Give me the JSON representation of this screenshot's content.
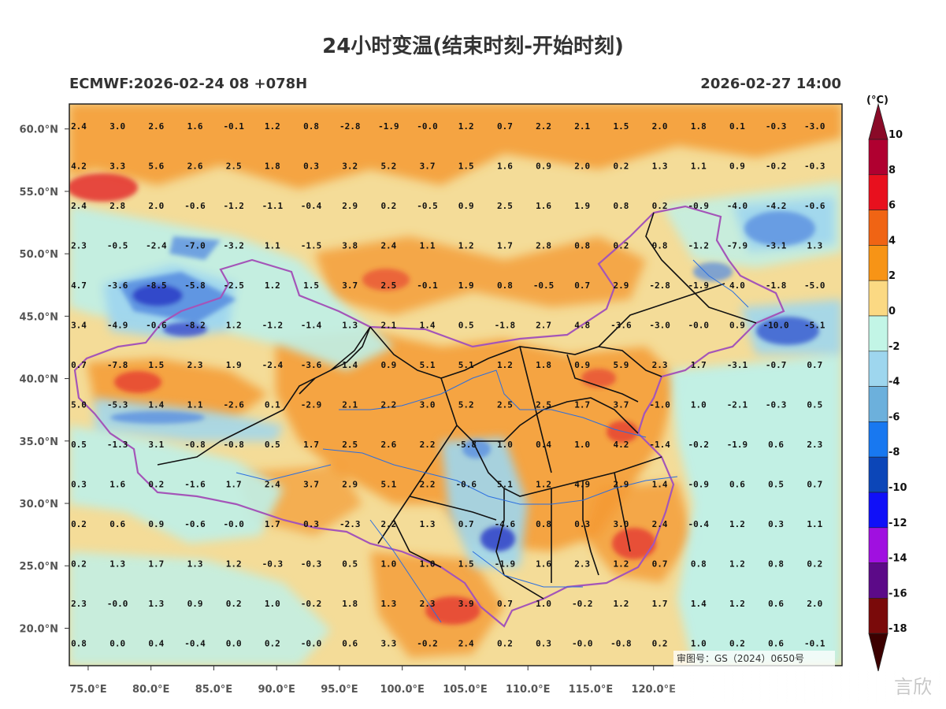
{
  "title": "24小时变温(结束时刻-开始时刻)",
  "model_info": "ECMWF:2026-02-24 08 +078H",
  "valid_time": "2026-02-27 14:00",
  "unit": "(°C)",
  "review_number": "审图号：GS（2024）0650号",
  "corner_mark": "言欣",
  "map": {
    "lon_range": [
      73.5,
      135.0
    ],
    "lat_range": [
      17.0,
      62.0
    ],
    "lat_ticks": [
      "60.0°N",
      "55.0°N",
      "50.0°N",
      "45.0°N",
      "40.0°N",
      "35.0°N",
      "30.0°N",
      "25.0°N",
      "20.0°N"
    ],
    "lat_tick_values": [
      60,
      55,
      50,
      45,
      40,
      35,
      30,
      25,
      20
    ],
    "lon_ticks": [
      "75.0°E",
      "80.0°E",
      "85.0°E",
      "90.0°E",
      "95.0°E",
      "100.0°E",
      "105.0°E",
      "110.0°E",
      "115.0°E",
      "120.0°E"
    ],
    "lon_tick_values": [
      75,
      80,
      85,
      90,
      95,
      100,
      105,
      110,
      115,
      120
    ]
  },
  "station_rows": [
    [
      "2.4",
      "3.0",
      "2.6",
      "1.6",
      "-0.1",
      "1.2",
      "0.8",
      "-2.8",
      "-1.9",
      "-0.0",
      "1.2",
      "0.7",
      "2.2",
      "2.1",
      "1.5",
      "2.0",
      "1.8",
      "0.1",
      "-0.3",
      "-3.0"
    ],
    [
      "4.2",
      "3.3",
      "5.6",
      "2.6",
      "2.5",
      "1.8",
      "0.3",
      "3.2",
      "5.2",
      "3.7",
      "1.5",
      "1.6",
      "0.9",
      "2.0",
      "0.2",
      "1.3",
      "1.1",
      "0.9",
      "-0.2",
      "-0.3"
    ],
    [
      "2.4",
      "2.8",
      "2.0",
      "-0.6",
      "-1.2",
      "-1.1",
      "-0.4",
      "2.9",
      "0.2",
      "-0.5",
      "0.9",
      "2.5",
      "1.6",
      "1.9",
      "0.8",
      "0.2",
      "-0.9",
      "-4.0",
      "-4.2",
      "-0.6"
    ],
    [
      "2.3",
      "-0.5",
      "-2.4",
      "-7.0",
      "-3.2",
      "1.1",
      "-1.5",
      "3.8",
      "2.4",
      "1.1",
      "1.2",
      "1.7",
      "2.8",
      "0.8",
      "0.2",
      "0.8",
      "-1.2",
      "-7.9",
      "-3.1",
      "1.3"
    ],
    [
      "4.7",
      "-3.6",
      "-8.5",
      "-5.8",
      "-2.5",
      "1.2",
      "1.5",
      "3.7",
      "2.5",
      "-0.1",
      "1.9",
      "0.8",
      "-0.5",
      "0.7",
      "2.9",
      "-2.8",
      "-1.9",
      "4.0",
      "-1.8",
      "-5.0"
    ],
    [
      "3.4",
      "-4.9",
      "-0.6",
      "-8.2",
      "1.2",
      "-1.2",
      "-1.4",
      "1.3",
      "2.1",
      "1.4",
      "0.5",
      "-1.8",
      "2.7",
      "4.8",
      "-3.6",
      "-3.0",
      "-0.0",
      "0.9",
      "-10.0",
      "-5.1"
    ],
    [
      "0.7",
      "-7.8",
      "1.5",
      "2.3",
      "1.9",
      "-2.4",
      "-3.6",
      "1.4",
      "0.9",
      "5.1",
      "5.1",
      "1.2",
      "1.8",
      "0.9",
      "5.9",
      "2.3",
      "1.7",
      "-3.1",
      "-0.7",
      "0.7"
    ],
    [
      "5.0",
      "-5.3",
      "1.4",
      "1.1",
      "-2.6",
      "0.1",
      "-2.9",
      "2.1",
      "2.2",
      "3.0",
      "5.2",
      "2.5",
      "2.5",
      "1.7",
      "3.7",
      "-1.0",
      "1.0",
      "-2.1",
      "-0.3",
      "0.5"
    ],
    [
      "0.5",
      "-1.3",
      "3.1",
      "-0.8",
      "-0.8",
      "0.5",
      "1.7",
      "2.5",
      "2.6",
      "2.2",
      "-5.8",
      "1.0",
      "0.4",
      "1.0",
      "4.2",
      "-1.4",
      "-0.2",
      "-1.9",
      "0.6",
      "2.3"
    ],
    [
      "0.3",
      "1.6",
      "0.2",
      "-1.6",
      "1.7",
      "2.4",
      "3.7",
      "2.9",
      "5.1",
      "2.2",
      "-0.6",
      "5.1",
      "1.2",
      "4.9",
      "2.9",
      "1.4",
      "-0.9",
      "0.6",
      "0.5",
      "0.7"
    ],
    [
      "0.2",
      "0.6",
      "0.9",
      "-0.6",
      "-0.0",
      "1.7",
      "0.3",
      "-2.3",
      "2.2",
      "1.3",
      "0.7",
      "-4.6",
      "0.8",
      "0.3",
      "3.0",
      "2.4",
      "-0.4",
      "1.2",
      "0.3",
      "1.1"
    ],
    [
      "0.2",
      "1.3",
      "1.7",
      "1.3",
      "1.2",
      "-0.3",
      "-0.3",
      "0.5",
      "1.0",
      "1.0",
      "1.5",
      "-1.9",
      "1.6",
      "2.3",
      "1.2",
      "0.7",
      "0.8",
      "1.2",
      "0.8",
      "0.2"
    ],
    [
      "2.3",
      "-0.0",
      "1.3",
      "0.9",
      "0.2",
      "1.0",
      "-0.2",
      "1.8",
      "1.3",
      "2.3",
      "3.9",
      "0.7",
      "1.0",
      "-0.2",
      "1.2",
      "1.7",
      "1.4",
      "1.2",
      "0.6",
      "2.0"
    ],
    [
      "0.8",
      "0.0",
      "0.4",
      "-0.4",
      "0.0",
      "0.2",
      "-0.0",
      "0.6",
      "3.3",
      "-0.2",
      "2.4",
      "0.2",
      "0.3",
      "-0.0",
      "-0.8",
      "0.2",
      "1.0",
      "0.2",
      "0.6",
      "-0.1"
    ]
  ],
  "colorbar": {
    "labels": [
      "10",
      "8",
      "6",
      "4",
      "2",
      "0",
      "-2",
      "-4",
      "-6",
      "-8",
      "-10",
      "-12",
      "-14",
      "-16",
      "-18"
    ],
    "levels": [
      10,
      8,
      6,
      4,
      2,
      0,
      -2,
      -4,
      -6,
      -8,
      -10,
      -12,
      -14,
      -16,
      -18
    ],
    "colors": [
      "#b00030",
      "#e8101e",
      "#f06414",
      "#f79416",
      "#fbd983",
      "#c2f5e6",
      "#9ed6ee",
      "#6cb0dc",
      "#1878f0",
      "#0c46b8",
      "#1010f8",
      "#a010e0",
      "#5c0a88",
      "#7a0a0a"
    ],
    "top_cap_color": "#8a0a28",
    "bottom_cap_color": "#3c0000"
  },
  "colors": {
    "background_light": "#f4dc98",
    "orange": "#f49a34",
    "dark_orange": "#ec6b22",
    "red": "#e33030",
    "cyan": "#bff0e8",
    "light_blue": "#9fd6ee",
    "blue": "#5a8fe0",
    "deep_blue": "#3040c8",
    "border_purple": "#a455b8",
    "province_black": "#111111",
    "river_blue": "#2a6ee0"
  }
}
